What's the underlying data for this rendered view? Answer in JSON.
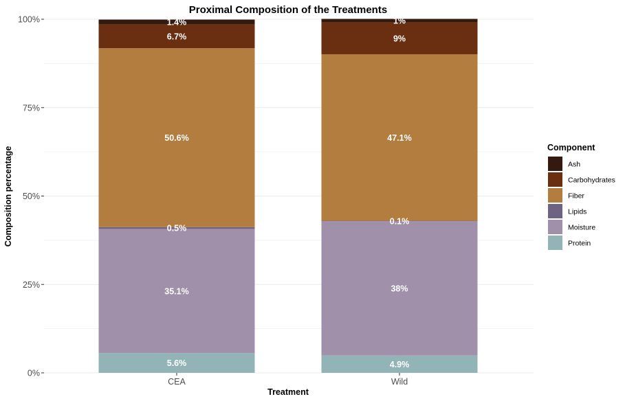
{
  "chart_data": {
    "type": "bar",
    "stacked": true,
    "title": "Proximal Composition of the Treatments",
    "xlabel": "Treatment",
    "ylabel": "Composition percentage",
    "categories": [
      "CEA",
      "Wild"
    ],
    "ylim": [
      0,
      100
    ],
    "yticks": [
      "0%",
      "25%",
      "50%",
      "75%",
      "100%"
    ],
    "grid": true,
    "legend_title": "Component",
    "legend_position": "right",
    "series": [
      {
        "name": "Protein",
        "color": "#93b4b7",
        "values": [
          5.6,
          4.9
        ],
        "labels": [
          "5.6%",
          "4.9%"
        ]
      },
      {
        "name": "Moisture",
        "color": "#a090aa",
        "values": [
          35.1,
          38
        ],
        "labels": [
          "35.1%",
          "38%"
        ]
      },
      {
        "name": "Lipids",
        "color": "#6e6381",
        "values": [
          0.5,
          0.1
        ],
        "labels": [
          "0.5%",
          "0.1%"
        ]
      },
      {
        "name": "Fiber",
        "color": "#b47d40",
        "values": [
          50.6,
          47.1
        ],
        "labels": [
          "50.6%",
          "47.1%"
        ]
      },
      {
        "name": "Carbohydrates",
        "color": "#6a2f10",
        "values": [
          6.7,
          9
        ],
        "labels": [
          "6.7%",
          "9%"
        ]
      },
      {
        "name": "Ash",
        "color": "#34190e",
        "values": [
          1.4,
          1
        ],
        "labels": [
          "1.4%",
          "1%"
        ]
      }
    ],
    "legend_order": [
      "Ash",
      "Carbohydrates",
      "Fiber",
      "Lipids",
      "Moisture",
      "Protein"
    ]
  }
}
